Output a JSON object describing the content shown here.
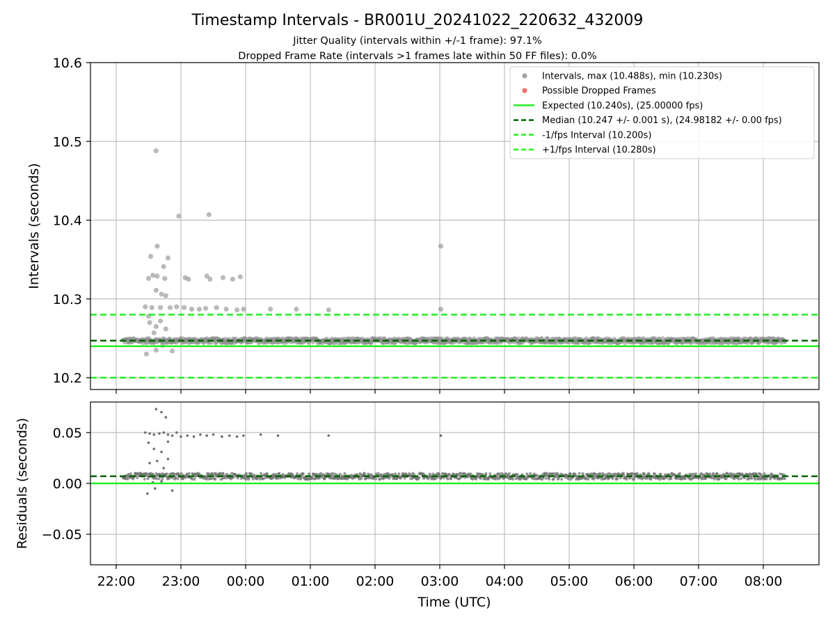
{
  "chart_data": [
    {
      "type": "scatter",
      "title": "Timestamp Intervals - BR001U_20241022_220632_432009",
      "subtitle_lines": [
        "Jitter Quality (intervals within +/-1 frame): 97.1%",
        "Dropped Frame Rate (intervals >1 frames late within 50 FF files): 0.0%"
      ],
      "ylabel": "Intervals (seconds)",
      "ylim": [
        10.185,
        10.6
      ],
      "yticks": [
        "10.2",
        "10.3",
        "10.4",
        "10.5",
        "10.6"
      ],
      "ytick_values": [
        10.2,
        10.3,
        10.4,
        10.5,
        10.6
      ],
      "grid": true,
      "legend_position": "upper right",
      "legend": [
        {
          "label": "Intervals, max (10.488s), min (10.230s)",
          "marker": "dot",
          "color": "#999999"
        },
        {
          "label": "Possible Dropped Frames",
          "marker": "dot",
          "color": "#f06262"
        },
        {
          "label": "Expected (10.240s), (25.00000 fps)",
          "line": "solid",
          "color": "#22ee22"
        },
        {
          "label": "Median (10.247 +/- 0.001 s), (24.98182 +/- 0.00 fps)",
          "line": "dashed",
          "color": "#006400"
        },
        {
          "label": "-1/fps Interval (10.200s)",
          "line": "dashed",
          "color": "#22ee22"
        },
        {
          "label": "+1/fps Interval (10.280s)",
          "line": "dashed",
          "color": "#22ee22"
        }
      ],
      "reference_lines": [
        {
          "y": 10.24,
          "style": "solid",
          "color": "#22ee22"
        },
        {
          "y": 10.247,
          "style": "dashed",
          "color": "#006400"
        },
        {
          "y": 10.2,
          "style": "dashed",
          "color": "#22ee22"
        },
        {
          "y": 10.28,
          "style": "dashed",
          "color": "#22ee22"
        }
      ],
      "baseline_band": {
        "x_start": "22:06",
        "x_end": "08:20",
        "y_center": 10.247,
        "y_spread": 0.003
      },
      "points": [
        {
          "x": "22:37",
          "y": 10.488
        },
        {
          "x": "22:58",
          "y": 10.405
        },
        {
          "x": "23:26",
          "y": 10.407
        },
        {
          "x": "22:38",
          "y": 10.367
        },
        {
          "x": "22:32",
          "y": 10.354
        },
        {
          "x": "22:48",
          "y": 10.352
        },
        {
          "x": "22:44",
          "y": 10.341
        },
        {
          "x": "22:30",
          "y": 10.326
        },
        {
          "x": "22:34",
          "y": 10.33
        },
        {
          "x": "22:38",
          "y": 10.329
        },
        {
          "x": "22:45",
          "y": 10.326
        },
        {
          "x": "23:04",
          "y": 10.327
        },
        {
          "x": "23:07",
          "y": 10.325
        },
        {
          "x": "23:24",
          "y": 10.329
        },
        {
          "x": "23:27",
          "y": 10.325
        },
        {
          "x": "23:39",
          "y": 10.327
        },
        {
          "x": "23:48",
          "y": 10.325
        },
        {
          "x": "23:55",
          "y": 10.328
        },
        {
          "x": "22:37",
          "y": 10.311
        },
        {
          "x": "22:42",
          "y": 10.306
        },
        {
          "x": "22:46",
          "y": 10.304
        },
        {
          "x": "22:27",
          "y": 10.29
        },
        {
          "x": "22:33",
          "y": 10.289
        },
        {
          "x": "22:41",
          "y": 10.289
        },
        {
          "x": "22:50",
          "y": 10.289
        },
        {
          "x": "22:56",
          "y": 10.29
        },
        {
          "x": "23:03",
          "y": 10.289
        },
        {
          "x": "23:10",
          "y": 10.287
        },
        {
          "x": "23:17",
          "y": 10.287
        },
        {
          "x": "23:23",
          "y": 10.288
        },
        {
          "x": "23:33",
          "y": 10.289
        },
        {
          "x": "23:42",
          "y": 10.287
        },
        {
          "x": "23:52",
          "y": 10.286
        },
        {
          "x": "23:58",
          "y": 10.287
        },
        {
          "x": "00:23",
          "y": 10.287
        },
        {
          "x": "00:47",
          "y": 10.287
        },
        {
          "x": "01:17",
          "y": 10.286
        },
        {
          "x": "03:01",
          "y": 10.367
        },
        {
          "x": "03:01",
          "y": 10.287
        },
        {
          "x": "22:30",
          "y": 10.278
        },
        {
          "x": "22:37",
          "y": 10.265
        },
        {
          "x": "22:41",
          "y": 10.272
        },
        {
          "x": "22:31",
          "y": 10.27
        },
        {
          "x": "22:46",
          "y": 10.262
        },
        {
          "x": "22:28",
          "y": 10.23
        },
        {
          "x": "22:37",
          "y": 10.235
        },
        {
          "x": "22:52",
          "y": 10.234
        },
        {
          "x": "22:35",
          "y": 10.257
        },
        {
          "x": "22:43",
          "y": 10.241
        }
      ]
    },
    {
      "type": "scatter",
      "ylabel": "Residuals (seconds)",
      "xlabel": "Time (UTC)",
      "ylim": [
        -0.08,
        0.08
      ],
      "yticks": [
        "−0.05",
        "0.00",
        "0.05"
      ],
      "ytick_values": [
        -0.05,
        0.0,
        0.05
      ],
      "xticks": [
        "22:00",
        "23:00",
        "00:00",
        "01:00",
        "02:00",
        "03:00",
        "04:00",
        "05:00",
        "06:00",
        "07:00",
        "08:00"
      ],
      "grid": true,
      "reference_lines": [
        {
          "y": 0.0,
          "style": "solid",
          "color": "#22ee22"
        },
        {
          "y": 0.007,
          "style": "dashed",
          "color": "#006400"
        }
      ],
      "baseline_band": {
        "x_start": "22:06",
        "x_end": "08:20",
        "y_center": 0.007,
        "y_spread": 0.003
      },
      "points": [
        {
          "x": "22:37",
          "y": 0.073
        },
        {
          "x": "22:42",
          "y": 0.07
        },
        {
          "x": "22:46",
          "y": 0.065
        },
        {
          "x": "22:27",
          "y": 0.05
        },
        {
          "x": "22:31",
          "y": 0.049
        },
        {
          "x": "22:35",
          "y": 0.048
        },
        {
          "x": "22:40",
          "y": 0.049
        },
        {
          "x": "22:44",
          "y": 0.05
        },
        {
          "x": "22:48",
          "y": 0.048
        },
        {
          "x": "22:52",
          "y": 0.047
        },
        {
          "x": "22:56",
          "y": 0.05
        },
        {
          "x": "23:00",
          "y": 0.046
        },
        {
          "x": "23:06",
          "y": 0.047
        },
        {
          "x": "23:12",
          "y": 0.046
        },
        {
          "x": "23:18",
          "y": 0.048
        },
        {
          "x": "23:24",
          "y": 0.047
        },
        {
          "x": "23:30",
          "y": 0.048
        },
        {
          "x": "23:38",
          "y": 0.046
        },
        {
          "x": "23:45",
          "y": 0.047
        },
        {
          "x": "23:52",
          "y": 0.046
        },
        {
          "x": "23:58",
          "y": 0.047
        },
        {
          "x": "00:14",
          "y": 0.048
        },
        {
          "x": "00:30",
          "y": 0.047
        },
        {
          "x": "01:17",
          "y": 0.047
        },
        {
          "x": "03:01",
          "y": 0.047
        },
        {
          "x": "22:30",
          "y": 0.04
        },
        {
          "x": "22:35",
          "y": 0.034
        },
        {
          "x": "22:42",
          "y": 0.031
        },
        {
          "x": "22:48",
          "y": 0.041
        },
        {
          "x": "22:31",
          "y": 0.02
        },
        {
          "x": "22:38",
          "y": 0.022
        },
        {
          "x": "22:44",
          "y": 0.015
        },
        {
          "x": "22:48",
          "y": 0.024
        },
        {
          "x": "22:29",
          "y": -0.01
        },
        {
          "x": "22:36",
          "y": -0.005
        },
        {
          "x": "22:52",
          "y": -0.007
        },
        {
          "x": "22:34",
          "y": 0.001
        },
        {
          "x": "22:42",
          "y": 0.002
        }
      ]
    }
  ]
}
